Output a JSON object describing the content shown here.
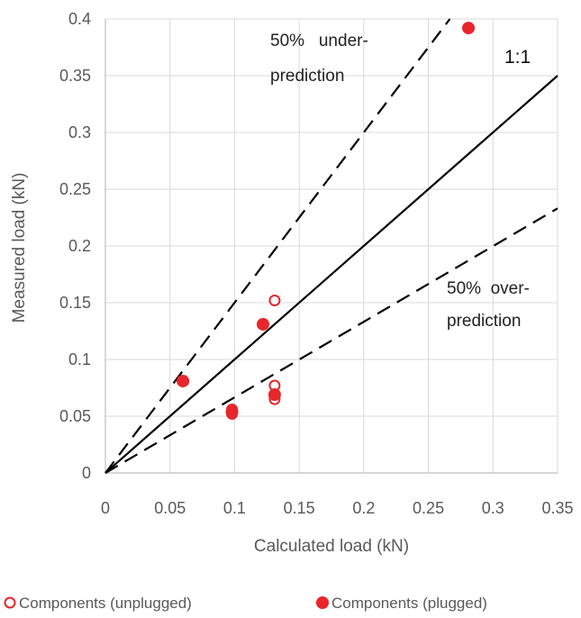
{
  "chart_data": {
    "type": "scatter",
    "title": "",
    "xlabel": "Calculated load (kN)",
    "ylabel": "Measured load (kN)",
    "xlim": [
      0,
      0.35
    ],
    "ylim": [
      0,
      0.4
    ],
    "x_ticks": [
      "0",
      "0.05",
      "0.1",
      "0.15",
      "0.2",
      "0.25",
      "0.3",
      "0.35"
    ],
    "y_ticks": [
      "0",
      "0.05",
      "0.1",
      "0.15",
      "0.2",
      "0.25",
      "0.3",
      "0.35",
      "0.4"
    ],
    "grid": "vertical and horizontal",
    "legend_position": "bottom",
    "series": [
      {
        "name": "Components (unplugged)",
        "marker": "open-circle",
        "color": "#e8262b",
        "points": [
          {
            "x": 0.131,
            "y": 0.152
          },
          {
            "x": 0.131,
            "y": 0.077
          },
          {
            "x": 0.131,
            "y": 0.065
          },
          {
            "x": 0.098,
            "y": 0.052
          },
          {
            "x": 0.098,
            "y": 0.056
          }
        ]
      },
      {
        "name": "Components (plugged)",
        "marker": "filled-circle",
        "color": "#e8262b",
        "points": [
          {
            "x": 0.06,
            "y": 0.081
          },
          {
            "x": 0.122,
            "y": 0.131
          },
          {
            "x": 0.131,
            "y": 0.069
          },
          {
            "x": 0.098,
            "y": 0.054
          },
          {
            "x": 0.281,
            "y": 0.392
          }
        ]
      }
    ],
    "reference_lines": [
      {
        "label": "1:1",
        "slope": 1.0,
        "style": "solid"
      },
      {
        "label": "50%   under-prediction",
        "slope": 1.5,
        "style": "dashed"
      },
      {
        "label": "50%  over-prediction",
        "slope": 0.666,
        "style": "dashed"
      }
    ],
    "annotations": {
      "under_line1": "50%   under-",
      "under_line2": "prediction",
      "over_line1": "50%  over-",
      "over_line2": "prediction",
      "one_to_one": "1:1"
    }
  }
}
